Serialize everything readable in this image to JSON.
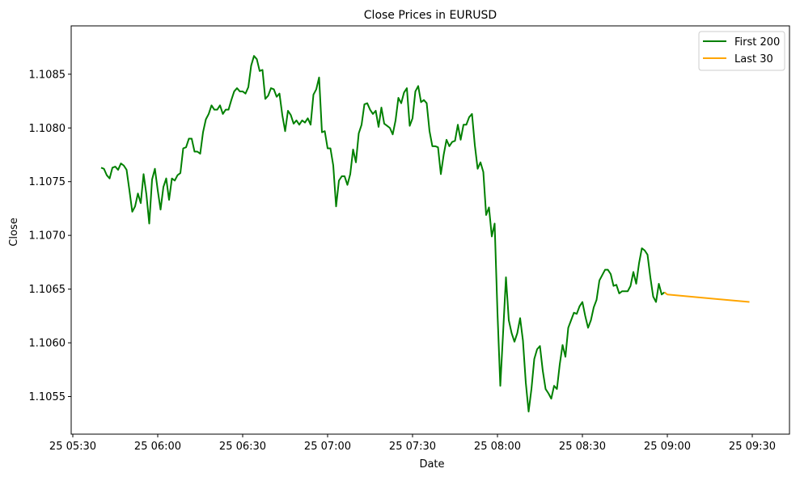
{
  "chart_data": {
    "type": "line",
    "title": "Close Prices in EURUSD",
    "xlabel": "Date",
    "ylabel": "Close",
    "x_axis_start_minutes": 0,
    "x_axis_end_minutes": 240,
    "x_start_label": "05:40",
    "ylim": [
      1.10515,
      1.10895
    ],
    "x_ticks": [
      {
        "label": "25 05:30",
        "minutes": -10
      },
      {
        "label": "25 06:00",
        "minutes": 20
      },
      {
        "label": "25 06:30",
        "minutes": 50
      },
      {
        "label": "25 07:00",
        "minutes": 80
      },
      {
        "label": "25 07:30",
        "minutes": 110
      },
      {
        "label": "25 08:00",
        "minutes": 140
      },
      {
        "label": "25 08:30",
        "minutes": 170
      },
      {
        "label": "25 09:00",
        "minutes": 200
      },
      {
        "label": "25 09:30",
        "minutes": 230
      }
    ],
    "y_ticks": [
      {
        "label": "1.1055",
        "value": 1.1055
      },
      {
        "label": "1.1060",
        "value": 1.106
      },
      {
        "label": "1.1065",
        "value": 1.1065
      },
      {
        "label": "1.1070",
        "value": 1.107
      },
      {
        "label": "1.1075",
        "value": 1.1075
      },
      {
        "label": "1.1080",
        "value": 1.108
      },
      {
        "label": "1.1085",
        "value": 1.1085
      }
    ],
    "legend_position": "top-right",
    "series": [
      {
        "name": "First 200",
        "color": "#008000",
        "x_minutes_start": 0,
        "x_step_minutes": 1,
        "values": [
          1.10763,
          1.10762,
          1.10756,
          1.10753,
          1.10763,
          1.10764,
          1.10761,
          1.10767,
          1.10765,
          1.10761,
          1.10742,
          1.10722,
          1.10727,
          1.10739,
          1.1073,
          1.10757,
          1.10738,
          1.10711,
          1.10752,
          1.10762,
          1.10742,
          1.10724,
          1.10745,
          1.10753,
          1.10733,
          1.10753,
          1.10751,
          1.10756,
          1.10758,
          1.10781,
          1.10782,
          1.1079,
          1.1079,
          1.10778,
          1.10778,
          1.10776,
          1.10796,
          1.10808,
          1.10813,
          1.10821,
          1.10817,
          1.10817,
          1.10821,
          1.10813,
          1.10817,
          1.10817,
          1.10826,
          1.10834,
          1.10837,
          1.10834,
          1.10834,
          1.10832,
          1.10838,
          1.10858,
          1.10867,
          1.10864,
          1.10853,
          1.10854,
          1.10827,
          1.1083,
          1.10837,
          1.10836,
          1.10829,
          1.10832,
          1.10812,
          1.10797,
          1.10816,
          1.10812,
          1.10804,
          1.10807,
          1.10803,
          1.10807,
          1.10805,
          1.10809,
          1.10803,
          1.10831,
          1.10836,
          1.10847,
          1.10796,
          1.10797,
          1.10781,
          1.10781,
          1.10765,
          1.10727,
          1.10751,
          1.10755,
          1.10755,
          1.10747,
          1.10757,
          1.1078,
          1.10768,
          1.10795,
          1.10803,
          1.10822,
          1.10823,
          1.10817,
          1.10813,
          1.10816,
          1.10801,
          1.10819,
          1.10804,
          1.10802,
          1.108,
          1.10794,
          1.10807,
          1.10828,
          1.10823,
          1.10833,
          1.10837,
          1.10802,
          1.10809,
          1.10834,
          1.10839,
          1.10824,
          1.10826,
          1.10823,
          1.10797,
          1.10783,
          1.10783,
          1.10782,
          1.10757,
          1.10775,
          1.10789,
          1.10783,
          1.10787,
          1.10788,
          1.10803,
          1.10789,
          1.10803,
          1.10803,
          1.1081,
          1.10813,
          1.10784,
          1.10762,
          1.10768,
          1.10759,
          1.10719,
          1.10726,
          1.10699,
          1.10711,
          1.10628,
          1.1056,
          1.1061,
          1.10661,
          1.10621,
          1.10609,
          1.10601,
          1.10609,
          1.10623,
          1.10602,
          1.10563,
          1.10536,
          1.10557,
          1.10585,
          1.10594,
          1.10597,
          1.10574,
          1.10557,
          1.10553,
          1.10548,
          1.1056,
          1.10557,
          1.1058,
          1.10598,
          1.10587,
          1.10614,
          1.10621,
          1.10628,
          1.10627,
          1.10634,
          1.10638,
          1.10625,
          1.10614,
          1.10621,
          1.10633,
          1.1064,
          1.10658,
          1.10663,
          1.10668,
          1.10668,
          1.10664,
          1.10653,
          1.10654,
          1.10646,
          1.10648,
          1.10648,
          1.10648,
          1.10653,
          1.10666,
          1.10655,
          1.10674,
          1.10688,
          1.10686,
          1.10682,
          1.10661,
          1.10643,
          1.10638,
          1.10655,
          1.10645,
          1.10647
        ]
      },
      {
        "name": "Last 30",
        "color": "#ffa500",
        "x": [
          199,
          200,
          229
        ],
        "values": [
          1.10647,
          1.10645,
          1.10638
        ]
      }
    ]
  }
}
